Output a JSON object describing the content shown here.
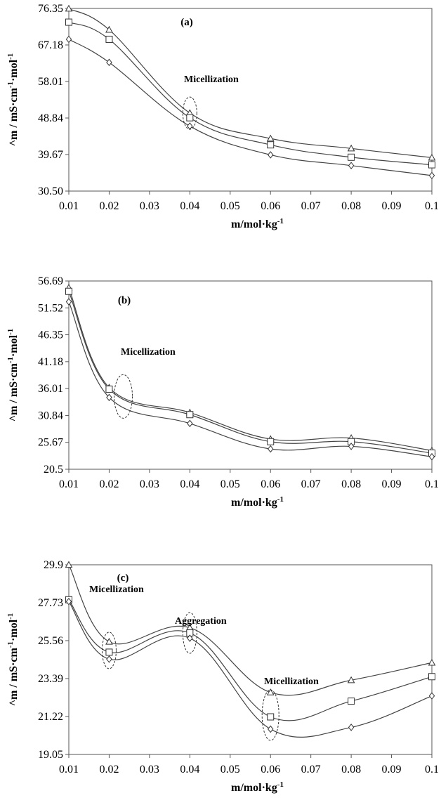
{
  "chart_data": [
    {
      "type": "line",
      "panel_label": "(a)",
      "xlabel": "m/mol·kg",
      "xlabel_sup": "-1",
      "ylabel": "^m / mS·cm",
      "ylabel_sup1": "-1",
      "ylabel_mid": "·mol",
      "ylabel_sup2": "-1",
      "x_ticks": [
        "0.01",
        "0.02",
        "0.03",
        "0.04",
        "0.05",
        "0.06",
        "0.07",
        "0.08",
        "0.09",
        "0.1"
      ],
      "y_ticks": [
        "30.50",
        "39.67",
        "48.84",
        "58.01",
        "67.18",
        "76.35"
      ],
      "xlim": [
        0.01,
        0.1
      ],
      "ylim": [
        30.5,
        76.35
      ],
      "x": [
        0.01,
        0.02,
        0.04,
        0.06,
        0.08,
        0.1
      ],
      "series": [
        {
          "marker": "triangle",
          "values": [
            76.3,
            71.0,
            50.1,
            43.7,
            41.2,
            38.9
          ]
        },
        {
          "marker": "square",
          "values": [
            72.9,
            68.6,
            48.9,
            42.1,
            39.0,
            37.1
          ]
        },
        {
          "marker": "diamond",
          "values": [
            68.6,
            62.8,
            46.8,
            39.6,
            36.9,
            34.4
          ]
        }
      ],
      "annotations": [
        {
          "text": "Micellization",
          "x": 0.04,
          "y": 49
        }
      ]
    },
    {
      "type": "line",
      "panel_label": "(b)",
      "xlabel": "m/mol·kg",
      "xlabel_sup": "-1",
      "ylabel": "^m / mS·cm",
      "ylabel_sup1": "-1",
      "ylabel_mid": "·mol",
      "ylabel_sup2": "-1",
      "x_ticks": [
        "0.01",
        "0.02",
        "0.03",
        "0.04",
        "0.05",
        "0.06",
        "0.07",
        "0.08",
        "0.09",
        "0.1"
      ],
      "y_ticks": [
        "20.5",
        "25.67",
        "30.84",
        "36.01",
        "41.18",
        "46.35",
        "51.52",
        "56.69"
      ],
      "xlim": [
        0.01,
        0.1
      ],
      "ylim": [
        20.5,
        56.69
      ],
      "x": [
        0.01,
        0.02,
        0.04,
        0.06,
        0.08,
        0.1
      ],
      "series": [
        {
          "marker": "triangle",
          "values": [
            55.4,
            36.2,
            31.4,
            26.3,
            26.5,
            24.1
          ]
        },
        {
          "marker": "square",
          "values": [
            54.7,
            35.9,
            31.0,
            25.8,
            25.8,
            23.6
          ]
        },
        {
          "marker": "diamond",
          "values": [
            52.7,
            34.3,
            29.3,
            24.4,
            24.9,
            22.9
          ]
        }
      ],
      "annotations": [
        {
          "text": "Micellization",
          "x": 0.0235,
          "y": 34.5
        }
      ]
    },
    {
      "type": "line",
      "panel_label": "(c)",
      "xlabel": "m/mol·kg",
      "xlabel_sup": "-1",
      "ylabel": "^m / mS·cm",
      "ylabel_sup1": "-1",
      "ylabel_mid": "·mol",
      "ylabel_sup2": "-1",
      "x_ticks": [
        "0.01",
        "0.02",
        "0.03",
        "0.04",
        "0.05",
        "0.06",
        "0.07",
        "0.08",
        "0.09",
        "0.1"
      ],
      "y_ticks": [
        "19.05",
        "21.22",
        "23.39",
        "25.56",
        "27.73",
        "29.9"
      ],
      "xlim": [
        0.01,
        0.1
      ],
      "ylim": [
        19.05,
        29.9
      ],
      "x": [
        0.01,
        0.02,
        0.04,
        0.06,
        0.08,
        0.1
      ],
      "series": [
        {
          "marker": "triangle",
          "values": [
            29.9,
            25.5,
            26.3,
            22.6,
            23.3,
            24.3
          ]
        },
        {
          "marker": "square",
          "values": [
            27.9,
            24.9,
            26.0,
            21.2,
            22.1,
            23.5
          ]
        },
        {
          "marker": "diamond",
          "values": [
            27.8,
            24.5,
            25.7,
            20.5,
            20.6,
            22.4
          ]
        }
      ],
      "annotations": [
        {
          "text": "Micellization",
          "x": 0.02,
          "y": 25.0
        },
        {
          "text": "Aggregation",
          "x": 0.04,
          "y": 26.0
        },
        {
          "text": "Micellization",
          "x": 0.06,
          "y": 21.3
        }
      ]
    }
  ]
}
